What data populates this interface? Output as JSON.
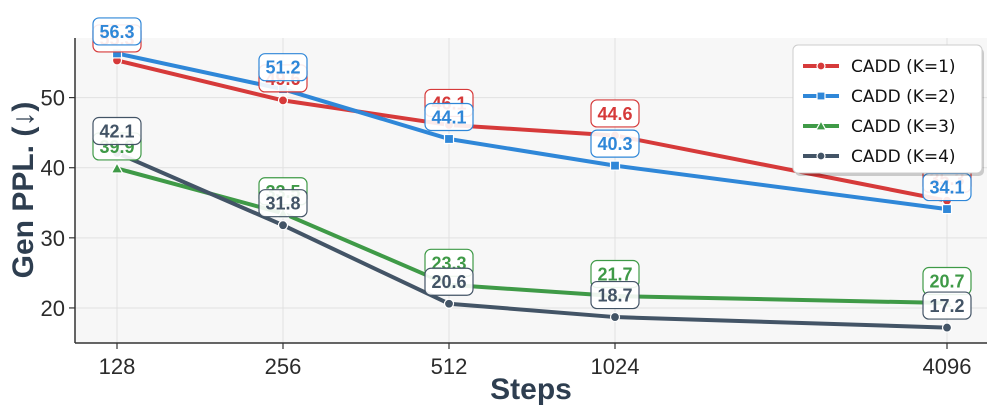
{
  "chart_data": {
    "type": "line",
    "xlabel": "Steps",
    "ylabel": "Gen PPL. (↓)",
    "categories": [
      "128",
      "256",
      "512",
      "1024",
      "4096"
    ],
    "yticks": [
      20,
      30,
      40,
      50
    ],
    "ylim": [
      15,
      58.5
    ],
    "grid": true,
    "legend_position": "top-right",
    "series": [
      {
        "name": "CADD (K=1)",
        "values": [
          55.3,
          49.6,
          46.1,
          44.6,
          35.3
        ],
        "color": "#d63a3a",
        "marker": "circle"
      },
      {
        "name": "CADD (K=2)",
        "values": [
          56.3,
          51.2,
          44.1,
          40.3,
          34.1
        ],
        "color": "#2f87d8",
        "marker": "square"
      },
      {
        "name": "CADD (K=3)",
        "values": [
          39.9,
          33.5,
          23.3,
          21.7,
          20.7
        ],
        "color": "#3f9a47",
        "marker": "triangle"
      },
      {
        "name": "CADD (K=4)",
        "values": [
          42.1,
          31.8,
          20.6,
          18.7,
          17.2
        ],
        "color": "#435466",
        "marker": "circle"
      }
    ]
  }
}
